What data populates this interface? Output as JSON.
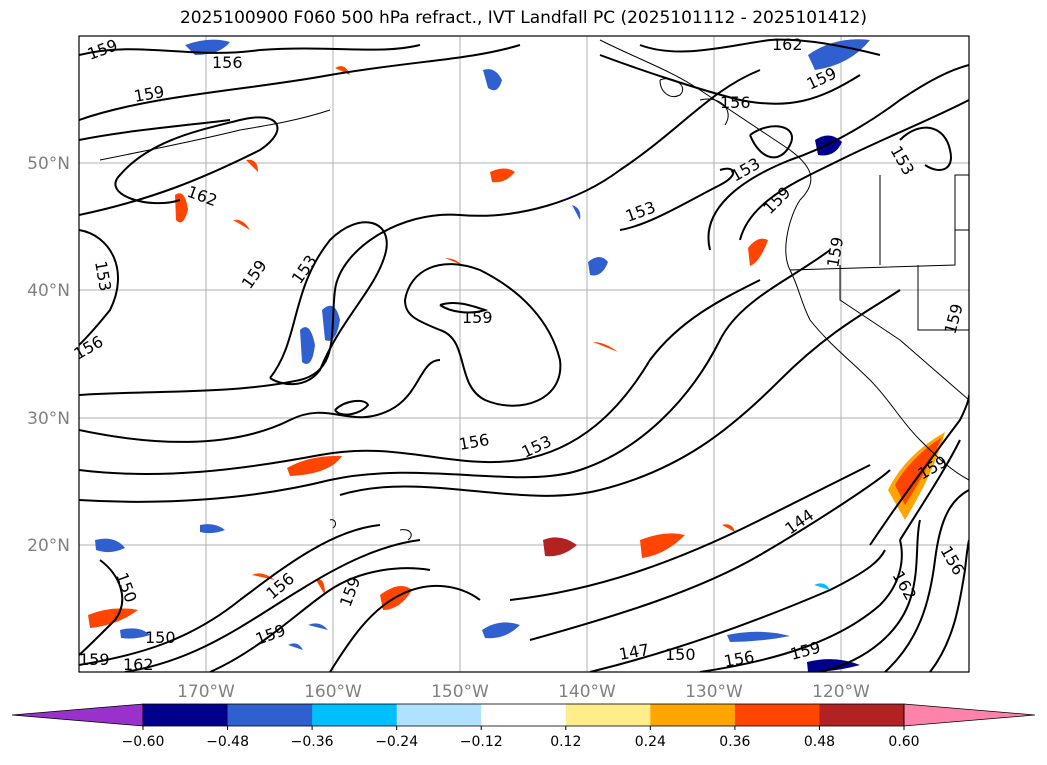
{
  "title": "2025100900 F060 500 hPa refract., IVT Landfall PC (2025101112 - 2025101412)",
  "map": {
    "lat_ticks": [
      "50°N",
      "40°N",
      "30°N",
      "20°N"
    ],
    "lon_ticks": [
      "170°W",
      "160°W",
      "150°W",
      "140°W",
      "130°W",
      "120°W"
    ],
    "contour_labels": [
      "159",
      "156",
      "159",
      "162",
      "153",
      "153",
      "156",
      "159",
      "153",
      "159",
      "156",
      "153",
      "159",
      "156",
      "159",
      "162",
      "153",
      "159",
      "159",
      "159",
      "156",
      "153",
      "159",
      "144",
      "150",
      "159",
      "162",
      "156",
      "150",
      "147",
      "150",
      "156",
      "159",
      "162",
      "159",
      "153",
      "162"
    ],
    "colors": {
      "contour": "#000000",
      "coast": "#000000",
      "grid": "#b0b0b0",
      "shading": [
        "#9932cc",
        "#00008b",
        "#3060d0",
        "#00bfff",
        "#b0e2ff",
        "#ffffff",
        "#ffec8b",
        "#ffa500",
        "#ff4500",
        "#b22222",
        "#ff82ab"
      ]
    }
  },
  "colorbar": {
    "ticks": [
      "−0.60",
      "−0.48",
      "−0.36",
      "−0.24",
      "−0.12",
      "0.12",
      "0.24",
      "0.36",
      "0.48",
      "0.60"
    ],
    "colors": [
      "#9932cc",
      "#00008b",
      "#3060d0",
      "#00bfff",
      "#b0e2ff",
      "#ffffff",
      "#ffec8b",
      "#ffa500",
      "#ff4500",
      "#b22222",
      "#ff82ab"
    ]
  }
}
